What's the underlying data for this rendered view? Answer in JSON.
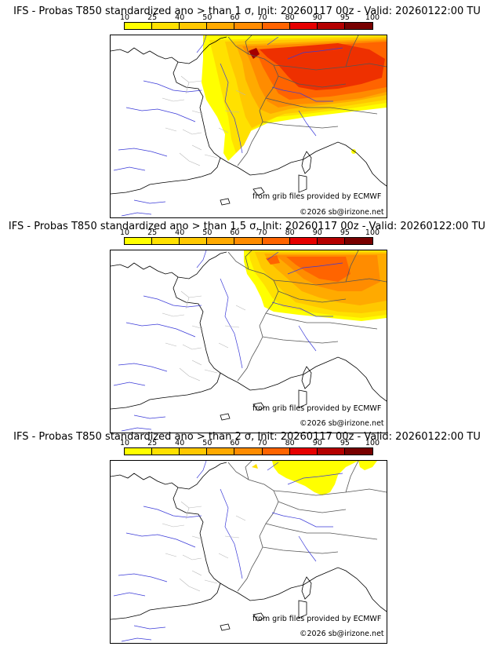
{
  "scale": {
    "ticks": [
      "10",
      "25",
      "40",
      "50",
      "60",
      "70",
      "80",
      "90",
      "95",
      "100"
    ],
    "colors": [
      "#ffff00",
      "#ffe100",
      "#ffc800",
      "#ffaa00",
      "#ff8c00",
      "#ff6400",
      "#e60000",
      "#b40000",
      "#780000"
    ]
  },
  "panels": [
    {
      "title": "IFS - Probas T850  standardized ano > than 1 σ, Init: 20260117 00z - Valid: 20260122:00 TU",
      "credit_source": "from grib files provided by ECMWF",
      "credit_copy": "©2026 sb@irizone.net"
    },
    {
      "title": "IFS - Probas T850  standardized ano > than 1.5 σ, Init: 20260117 00z - Valid: 20260122:00 TU",
      "credit_source": "from grib files provided by ECMWF",
      "credit_copy": "©2026 sb@irizone.net"
    },
    {
      "title": "IFS - Probas T850  standardized ano > than 2 σ, Init: 20260117 00z - Valid: 20260122:00 TU",
      "credit_source": "from grib files provided by ECMWF",
      "credit_copy": "©2026 sb@irizone.net"
    }
  ]
}
